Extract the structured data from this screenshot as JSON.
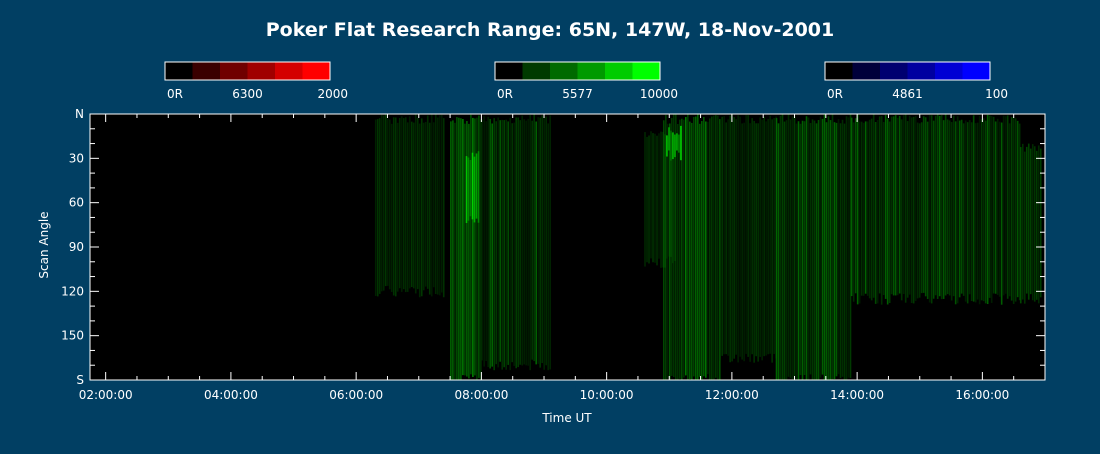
{
  "page": {
    "background": "#013f63"
  },
  "chart_data": {
    "type": "heatmap",
    "title": "Poker Flat Research Range: 65N, 147W, 18-Nov-2001",
    "xlabel": "Time UT",
    "ylabel": "Scan Angle",
    "xlim": [
      "01:45:00",
      "17:00:00"
    ],
    "ylim": [
      0,
      180
    ],
    "x_ticks": [
      "02:00:00",
      "04:00:00",
      "06:00:00",
      "08:00:00",
      "10:00:00",
      "12:00:00",
      "14:00:00",
      "16:00:00"
    ],
    "x_tick_hours": [
      2,
      4,
      6,
      8,
      10,
      12,
      14,
      16
    ],
    "y_ticks": [
      "N",
      "30",
      "60",
      "90",
      "120",
      "150",
      "S"
    ],
    "y_tick_values": [
      0,
      30,
      60,
      90,
      120,
      150,
      180
    ],
    "colorbars": [
      {
        "name": "6300",
        "min_label": "0R",
        "mid_label": "6300",
        "max_label": "2000",
        "colors": [
          "#000000",
          "#3a0000",
          "#700000",
          "#a00000",
          "#d40000",
          "#ff0000"
        ]
      },
      {
        "name": "5577",
        "min_label": "0R",
        "mid_label": "5577",
        "max_label": "10000",
        "colors": [
          "#000000",
          "#003a00",
          "#006a00",
          "#009a00",
          "#00cc00",
          "#00ff00"
        ]
      },
      {
        "name": "4861",
        "min_label": "0R",
        "mid_label": "4861",
        "max_label": "100",
        "colors": [
          "#000000",
          "#00003a",
          "#000070",
          "#0000a0",
          "#0000d4",
          "#0000ff"
        ]
      }
    ],
    "green_emission_regions": [
      {
        "start_hour": 6.3,
        "end_hour": 7.4,
        "angle_min": 0,
        "angle_max": 120,
        "level": 0.2
      },
      {
        "start_hour": 7.5,
        "end_hour": 8.0,
        "angle_min": 0,
        "angle_max": 180,
        "level": 0.5
      },
      {
        "start_hour": 7.75,
        "end_hour": 7.95,
        "angle_min": 25,
        "angle_max": 70,
        "level": 0.85
      },
      {
        "start_hour": 8.0,
        "end_hour": 9.1,
        "angle_min": 0,
        "angle_max": 170,
        "level": 0.28
      },
      {
        "start_hour": 10.6,
        "end_hour": 11.1,
        "angle_min": 10,
        "angle_max": 100,
        "level": 0.2
      },
      {
        "start_hour": 10.9,
        "end_hour": 11.8,
        "angle_min": 0,
        "angle_max": 180,
        "level": 0.42
      },
      {
        "start_hour": 10.95,
        "end_hour": 11.2,
        "angle_min": 8,
        "angle_max": 28,
        "level": 0.75
      },
      {
        "start_hour": 11.8,
        "end_hour": 12.7,
        "angle_min": 0,
        "angle_max": 165,
        "level": 0.18
      },
      {
        "start_hour": 12.7,
        "end_hour": 13.9,
        "angle_min": 0,
        "angle_max": 180,
        "level": 0.35
      },
      {
        "start_hour": 13.9,
        "end_hour": 16.6,
        "angle_min": 0,
        "angle_max": 125,
        "level": 0.3
      },
      {
        "start_hour": 16.6,
        "end_hour": 16.95,
        "angle_min": 20,
        "angle_max": 125,
        "level": 0.35
      }
    ]
  }
}
